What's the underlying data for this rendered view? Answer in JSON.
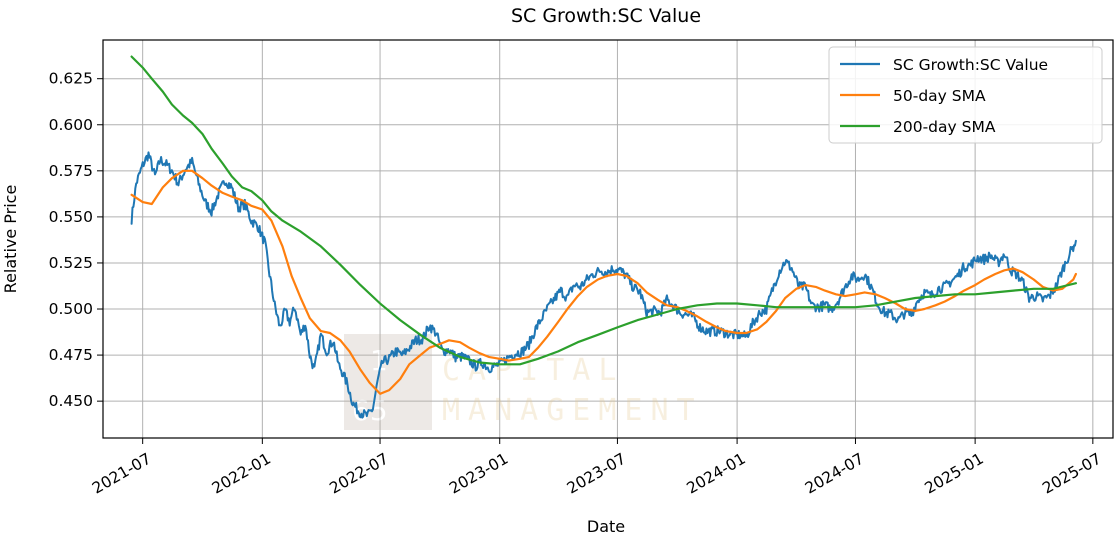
{
  "chart_data": {
    "type": "line",
    "title": "SC Growth:SC Value",
    "xlabel": "Date",
    "ylabel": "Relative Price",
    "xlim": [
      "2021-05-01",
      "2025-08-01"
    ],
    "ylim": [
      0.43,
      0.646
    ],
    "grid": true,
    "legend": "top-right",
    "x_ticks": [
      "2021-07",
      "2022-01",
      "2022-07",
      "2023-01",
      "2023-07",
      "2024-01",
      "2024-07",
      "2025-01",
      "2025-07"
    ],
    "y_ticks": [
      "0.450",
      "0.475",
      "0.500",
      "0.525",
      "0.550",
      "0.575",
      "0.600",
      "0.625"
    ],
    "watermark": {
      "logo_top": "1",
      "logo_bottom": "65",
      "line1": "CAPITAL",
      "line2": "MANAGEMENT"
    },
    "series": [
      {
        "name": "SC Growth:SC Value",
        "color": "#1f77b4",
        "x": [
          "2021-06-14",
          "2021-06-21",
          "2021-07-01",
          "2021-07-10",
          "2021-07-20",
          "2021-07-28",
          "2021-08-05",
          "2021-08-15",
          "2021-08-25",
          "2021-09-05",
          "2021-09-15",
          "2021-09-25",
          "2021-10-05",
          "2021-10-15",
          "2021-10-25",
          "2021-11-05",
          "2021-11-15",
          "2021-11-25",
          "2021-12-05",
          "2021-12-15",
          "2021-12-25",
          "2022-01-05",
          "2022-01-12",
          "2022-01-20",
          "2022-01-28",
          "2022-02-05",
          "2022-02-12",
          "2022-02-20",
          "2022-03-01",
          "2022-03-08",
          "2022-03-15",
          "2022-03-22",
          "2022-04-01",
          "2022-04-10",
          "2022-04-20",
          "2022-04-28",
          "2022-05-05",
          "2022-05-12",
          "2022-05-20",
          "2022-05-28",
          "2022-06-05",
          "2022-06-12",
          "2022-06-20",
          "2022-06-28",
          "2022-07-05",
          "2022-07-15",
          "2022-07-25",
          "2022-08-05",
          "2022-08-15",
          "2022-08-25",
          "2022-09-05",
          "2022-09-15",
          "2022-09-25",
          "2022-10-05",
          "2022-10-15",
          "2022-10-25",
          "2022-11-05",
          "2022-11-15",
          "2022-11-25",
          "2022-12-05",
          "2022-12-15",
          "2022-12-25",
          "2023-01-05",
          "2023-01-15",
          "2023-01-25",
          "2023-02-05",
          "2023-02-15",
          "2023-02-25",
          "2023-03-05",
          "2023-03-15",
          "2023-03-25",
          "2023-04-05",
          "2023-04-15",
          "2023-04-25",
          "2023-05-05",
          "2023-05-15",
          "2023-05-25",
          "2023-06-05",
          "2023-06-15",
          "2023-06-25",
          "2023-07-05",
          "2023-07-15",
          "2023-07-25",
          "2023-08-05",
          "2023-08-15",
          "2023-08-25",
          "2023-09-05",
          "2023-09-15",
          "2023-09-25",
          "2023-10-05",
          "2023-10-15",
          "2023-10-25",
          "2023-11-05",
          "2023-11-15",
          "2023-11-25",
          "2023-12-05",
          "2023-12-15",
          "2023-12-25",
          "2024-01-05",
          "2024-01-15",
          "2024-01-25",
          "2024-02-05",
          "2024-02-15",
          "2024-02-25",
          "2024-03-05",
          "2024-03-15",
          "2024-03-25",
          "2024-04-05",
          "2024-04-15",
          "2024-04-25",
          "2024-05-05",
          "2024-05-15",
          "2024-05-25",
          "2024-06-05",
          "2024-06-15",
          "2024-06-25",
          "2024-07-05",
          "2024-07-15",
          "2024-07-25",
          "2024-08-05",
          "2024-08-15",
          "2024-08-25",
          "2024-09-05",
          "2024-09-15",
          "2024-09-25",
          "2024-10-05",
          "2024-10-15",
          "2024-10-25",
          "2024-11-05",
          "2024-11-15",
          "2024-11-25",
          "2024-12-05",
          "2024-12-15",
          "2024-12-25",
          "2025-01-05",
          "2025-01-15",
          "2025-01-25",
          "2025-02-05",
          "2025-02-15",
          "2025-02-25",
          "2025-03-05",
          "2025-03-15",
          "2025-03-25",
          "2025-04-05",
          "2025-04-15",
          "2025-04-25",
          "2025-05-05",
          "2025-05-15",
          "2025-05-25",
          "2025-06-05"
        ],
        "values": [
          0.549,
          0.568,
          0.578,
          0.584,
          0.572,
          0.581,
          0.579,
          0.575,
          0.568,
          0.576,
          0.58,
          0.568,
          0.558,
          0.553,
          0.562,
          0.57,
          0.566,
          0.555,
          0.557,
          0.548,
          0.545,
          0.536,
          0.519,
          0.502,
          0.49,
          0.499,
          0.493,
          0.501,
          0.486,
          0.492,
          0.475,
          0.467,
          0.486,
          0.477,
          0.483,
          0.47,
          0.465,
          0.459,
          0.449,
          0.445,
          0.443,
          0.442,
          0.446,
          0.462,
          0.471,
          0.473,
          0.477,
          0.475,
          0.479,
          0.483,
          0.484,
          0.491,
          0.487,
          0.477,
          0.478,
          0.474,
          0.474,
          0.472,
          0.469,
          0.471,
          0.468,
          0.469,
          0.471,
          0.474,
          0.476,
          0.477,
          0.481,
          0.489,
          0.494,
          0.5,
          0.505,
          0.51,
          0.506,
          0.513,
          0.512,
          0.516,
          0.519,
          0.521,
          0.52,
          0.522,
          0.521,
          0.518,
          0.512,
          0.509,
          0.498,
          0.499,
          0.498,
          0.505,
          0.502,
          0.498,
          0.497,
          0.496,
          0.49,
          0.488,
          0.488,
          0.488,
          0.487,
          0.486,
          0.486,
          0.485,
          0.492,
          0.498,
          0.5,
          0.511,
          0.52,
          0.526,
          0.522,
          0.512,
          0.512,
          0.502,
          0.501,
          0.502,
          0.5,
          0.505,
          0.512,
          0.518,
          0.516,
          0.519,
          0.512,
          0.502,
          0.498,
          0.497,
          0.494,
          0.498,
          0.497,
          0.505,
          0.509,
          0.507,
          0.511,
          0.512,
          0.515,
          0.518,
          0.523,
          0.524,
          0.528,
          0.527,
          0.529,
          0.525,
          0.53,
          0.521,
          0.519,
          0.515,
          0.506,
          0.507,
          0.505,
          0.507,
          0.512,
          0.521,
          0.529,
          0.537
        ]
      },
      {
        "name": "50-day SMA",
        "color": "#ff7f0e",
        "x": [
          "2021-06-14",
          "2021-07-01",
          "2021-07-15",
          "2021-08-01",
          "2021-08-15",
          "2021-09-01",
          "2021-09-15",
          "2021-10-01",
          "2021-10-15",
          "2021-11-01",
          "2021-11-15",
          "2021-12-01",
          "2021-12-15",
          "2022-01-01",
          "2022-01-15",
          "2022-02-01",
          "2022-02-15",
          "2022-03-01",
          "2022-03-15",
          "2022-04-01",
          "2022-04-15",
          "2022-05-01",
          "2022-05-15",
          "2022-06-01",
          "2022-06-15",
          "2022-07-01",
          "2022-07-15",
          "2022-08-01",
          "2022-08-15",
          "2022-09-01",
          "2022-09-15",
          "2022-10-01",
          "2022-10-15",
          "2022-11-01",
          "2022-11-15",
          "2022-12-01",
          "2022-12-15",
          "2023-01-01",
          "2023-01-15",
          "2023-02-01",
          "2023-02-15",
          "2023-03-01",
          "2023-03-15",
          "2023-04-01",
          "2023-04-15",
          "2023-05-01",
          "2023-05-15",
          "2023-06-01",
          "2023-06-15",
          "2023-07-01",
          "2023-07-15",
          "2023-08-01",
          "2023-08-15",
          "2023-09-01",
          "2023-09-15",
          "2023-10-01",
          "2023-10-15",
          "2023-11-01",
          "2023-11-15",
          "2023-12-01",
          "2023-12-15",
          "2024-01-01",
          "2024-01-15",
          "2024-02-01",
          "2024-02-15",
          "2024-03-01",
          "2024-03-15",
          "2024-04-01",
          "2024-04-15",
          "2024-05-01",
          "2024-05-15",
          "2024-06-01",
          "2024-06-15",
          "2024-07-01",
          "2024-07-15",
          "2024-08-01",
          "2024-08-15",
          "2024-09-01",
          "2024-09-15",
          "2024-10-01",
          "2024-10-15",
          "2024-11-01",
          "2024-11-15",
          "2024-12-01",
          "2024-12-15",
          "2025-01-01",
          "2025-01-15",
          "2025-02-01",
          "2025-02-15",
          "2025-03-01",
          "2025-03-15",
          "2025-04-01",
          "2025-04-15",
          "2025-05-01",
          "2025-05-15",
          "2025-06-01",
          "2025-06-05"
        ],
        "values": [
          0.562,
          0.558,
          0.557,
          0.566,
          0.571,
          0.575,
          0.575,
          0.571,
          0.567,
          0.563,
          0.561,
          0.559,
          0.556,
          0.554,
          0.548,
          0.534,
          0.518,
          0.506,
          0.495,
          0.488,
          0.487,
          0.483,
          0.477,
          0.467,
          0.46,
          0.454,
          0.456,
          0.462,
          0.47,
          0.475,
          0.479,
          0.481,
          0.483,
          0.482,
          0.479,
          0.476,
          0.474,
          0.473,
          0.472,
          0.473,
          0.474,
          0.479,
          0.485,
          0.493,
          0.5,
          0.507,
          0.512,
          0.516,
          0.518,
          0.519,
          0.518,
          0.514,
          0.509,
          0.505,
          0.502,
          0.501,
          0.499,
          0.496,
          0.493,
          0.49,
          0.488,
          0.487,
          0.487,
          0.489,
          0.493,
          0.499,
          0.506,
          0.511,
          0.513,
          0.512,
          0.51,
          0.508,
          0.507,
          0.508,
          0.509,
          0.508,
          0.506,
          0.503,
          0.5,
          0.499,
          0.5,
          0.502,
          0.504,
          0.507,
          0.51,
          0.513,
          0.516,
          0.519,
          0.521,
          0.522,
          0.52,
          0.516,
          0.512,
          0.51,
          0.511,
          0.516,
          0.519
        ]
      },
      {
        "name": "200-day SMA",
        "color": "#2ca02c",
        "x": [
          "2021-06-14",
          "2021-07-01",
          "2021-07-15",
          "2021-08-01",
          "2021-08-15",
          "2021-09-01",
          "2021-09-15",
          "2021-10-01",
          "2021-10-15",
          "2021-11-01",
          "2021-11-15",
          "2021-12-01",
          "2021-12-15",
          "2022-01-01",
          "2022-01-15",
          "2022-02-01",
          "2022-03-01",
          "2022-04-01",
          "2022-05-01",
          "2022-06-01",
          "2022-07-01",
          "2022-08-01",
          "2022-09-01",
          "2022-10-01",
          "2022-11-01",
          "2022-12-01",
          "2023-01-01",
          "2023-02-01",
          "2023-03-01",
          "2023-04-01",
          "2023-05-01",
          "2023-06-01",
          "2023-07-01",
          "2023-08-01",
          "2023-09-01",
          "2023-10-01",
          "2023-11-01",
          "2023-12-01",
          "2024-01-01",
          "2024-02-01",
          "2024-03-01",
          "2024-04-01",
          "2024-05-01",
          "2024-06-01",
          "2024-07-01",
          "2024-08-01",
          "2024-09-01",
          "2024-10-01",
          "2024-11-01",
          "2024-12-01",
          "2025-01-01",
          "2025-02-01",
          "2025-03-01",
          "2025-04-01",
          "2025-05-01",
          "2025-06-05"
        ],
        "values": [
          0.637,
          0.631,
          0.625,
          0.618,
          0.611,
          0.605,
          0.601,
          0.595,
          0.587,
          0.579,
          0.572,
          0.566,
          0.564,
          0.559,
          0.553,
          0.548,
          0.542,
          0.534,
          0.524,
          0.513,
          0.503,
          0.494,
          0.486,
          0.479,
          0.474,
          0.471,
          0.47,
          0.47,
          0.473,
          0.477,
          0.482,
          0.486,
          0.49,
          0.494,
          0.497,
          0.5,
          0.502,
          0.503,
          0.503,
          0.502,
          0.501,
          0.501,
          0.501,
          0.501,
          0.501,
          0.502,
          0.504,
          0.506,
          0.507,
          0.508,
          0.508,
          0.509,
          0.51,
          0.511,
          0.511,
          0.514
        ]
      }
    ]
  }
}
